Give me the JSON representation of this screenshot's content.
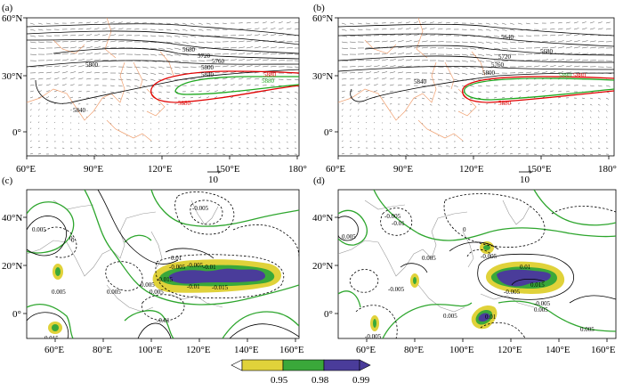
{
  "figure": {
    "panels": [
      {
        "id": "a",
        "label": "(a)",
        "type": "contour_vector_map",
        "x_ticks": [
          "60°E",
          "90°E",
          "120°E",
          "150°E",
          "180°"
        ],
        "y_ticks": [
          "60°N",
          "30°N",
          "0°"
        ],
        "reference_vector": "10",
        "contour_labels": [
          "5680",
          "5720",
          "5760",
          "5800",
          "5840",
          "5800",
          "5840",
          "5880",
          "5880",
          "5880"
        ],
        "contour_colors": {
          "black": "#000000",
          "red": "#e00000",
          "green": "#1fa81f"
        }
      },
      {
        "id": "b",
        "label": "(b)",
        "type": "contour_vector_map",
        "x_ticks": [
          "60°E",
          "90°E",
          "120°E",
          "150°E",
          "180°"
        ],
        "y_ticks": [
          "60°N",
          "30°N",
          "0°"
        ],
        "reference_vector": "10",
        "contour_labels": [
          "5640",
          "5680",
          "5720",
          "5760",
          "5800",
          "5840",
          "5880",
          "5880",
          "5880"
        ],
        "contour_colors": {
          "black": "#000000",
          "red": "#e00000",
          "green": "#1fa81f"
        }
      },
      {
        "id": "c",
        "label": "(c)",
        "type": "correlation_map",
        "x_ticks": [
          "60°E",
          "80°E",
          "100°E",
          "120°E",
          "140°E",
          "160°E"
        ],
        "y_ticks": [
          "40°N",
          "20°N",
          "0°"
        ],
        "contour_labels": [
          "-0.005",
          "0.005",
          "0",
          "0.01",
          "-0.005",
          "0.005",
          "0.005",
          "-0.015",
          "-0.01",
          "-0.01",
          "-0.015",
          "-0.005",
          "0.005",
          "-0.01",
          "0.005",
          "0.015",
          "0"
        ]
      },
      {
        "id": "d",
        "label": "(d)",
        "type": "correlation_map",
        "x_ticks": [
          "60°E",
          "80°E",
          "100°E",
          "120°E",
          "140°E",
          "160°E"
        ],
        "y_ticks": [
          "40°N",
          "20°N",
          "0°"
        ],
        "contour_labels": [
          "-0.005",
          "-0.01",
          "0.005",
          "-0.005",
          "0",
          "0.005",
          "0.01",
          "-0.005",
          "-0.005",
          "0.01",
          "0.015",
          "-0.01",
          "0.005",
          "-0.005",
          "-0.005",
          "0.005",
          "0.005"
        ]
      }
    ],
    "colorbar": {
      "ticks": [
        "0.95",
        "0.98",
        "0.99"
      ],
      "colors": [
        "#ffffff",
        "#e0d23a",
        "#3aa83a",
        "#4a3c9a"
      ]
    }
  }
}
